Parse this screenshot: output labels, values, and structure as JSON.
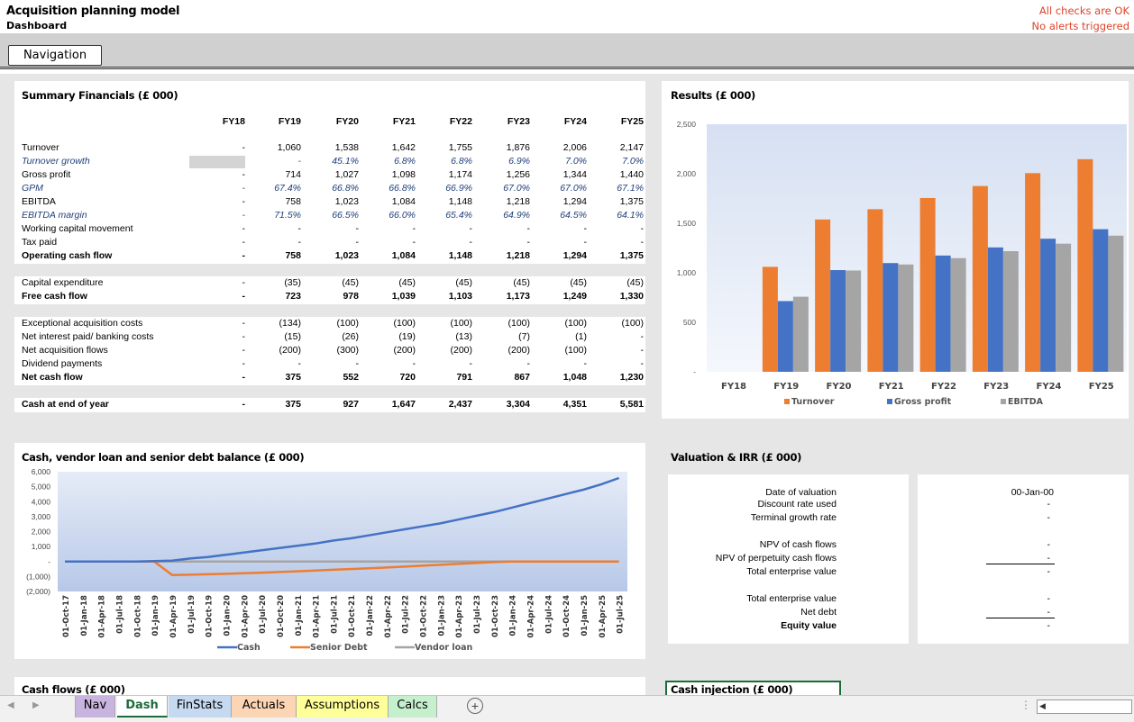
{
  "header": {
    "title": "Acquisition planning model",
    "subtitle": "Dashboard",
    "check_status": "All checks are OK",
    "alert_status": "No alerts triggered",
    "nav_button": "Navigation"
  },
  "summary": {
    "title": "Summary Financials (£ 000)",
    "years": [
      "FY18",
      "FY19",
      "FY20",
      "FY21",
      "FY22",
      "FY23",
      "FY24",
      "FY25"
    ],
    "rows": [
      {
        "label": "Turnover",
        "style": "normal",
        "values": [
          "-",
          "1,060",
          "1,538",
          "1,642",
          "1,755",
          "1,876",
          "2,006",
          "2,147"
        ]
      },
      {
        "label": "Turnover growth",
        "style": "italic",
        "values": [
          "-",
          "-",
          "45.1%",
          "6.8%",
          "6.8%",
          "6.9%",
          "7.0%",
          "7.0%"
        ]
      },
      {
        "label": "Gross profit",
        "style": "normal",
        "values": [
          "-",
          "714",
          "1,027",
          "1,098",
          "1,174",
          "1,256",
          "1,344",
          "1,440"
        ]
      },
      {
        "label": "GPM",
        "style": "italic",
        "values": [
          "-",
          "67.4%",
          "66.8%",
          "66.8%",
          "66.9%",
          "67.0%",
          "67.0%",
          "67.1%"
        ]
      },
      {
        "label": "EBITDA",
        "style": "normal",
        "values": [
          "-",
          "758",
          "1,023",
          "1,084",
          "1,148",
          "1,218",
          "1,294",
          "1,375"
        ]
      },
      {
        "label": "EBITDA margin",
        "style": "italic",
        "values": [
          "-",
          "71.5%",
          "66.5%",
          "66.0%",
          "65.4%",
          "64.9%",
          "64.5%",
          "64.1%"
        ]
      },
      {
        "label": "Working capital movement",
        "style": "normal",
        "values": [
          "-",
          "-",
          "-",
          "-",
          "-",
          "-",
          "-",
          "-"
        ]
      },
      {
        "label": "Tax paid",
        "style": "normal",
        "values": [
          "-",
          "-",
          "-",
          "-",
          "-",
          "-",
          "-",
          "-"
        ]
      },
      {
        "label": "Operating cash flow",
        "style": "bold",
        "values": [
          "-",
          "758",
          "1,023",
          "1,084",
          "1,148",
          "1,218",
          "1,294",
          "1,375"
        ]
      },
      {
        "label": "Capital expenditure",
        "style": "normal",
        "values": [
          "-",
          "(35)",
          "(45)",
          "(45)",
          "(45)",
          "(45)",
          "(45)",
          "(45)"
        ]
      },
      {
        "label": "Free cash flow",
        "style": "bold",
        "values": [
          "-",
          "723",
          "978",
          "1,039",
          "1,103",
          "1,173",
          "1,249",
          "1,330"
        ]
      },
      {
        "label": "Exceptional acquisition costs",
        "style": "normal",
        "values": [
          "-",
          "(134)",
          "(100)",
          "(100)",
          "(100)",
          "(100)",
          "(100)",
          "(100)"
        ]
      },
      {
        "label": "Net interest paid/ banking costs",
        "style": "normal",
        "values": [
          "-",
          "(15)",
          "(26)",
          "(19)",
          "(13)",
          "(7)",
          "(1)",
          "-"
        ]
      },
      {
        "label": "Net acquisition flows",
        "style": "normal",
        "values": [
          "-",
          "(200)",
          "(300)",
          "(200)",
          "(200)",
          "(200)",
          "(100)",
          "-"
        ]
      },
      {
        "label": "Dividend payments",
        "style": "normal",
        "values": [
          "-",
          "-",
          "-",
          "-",
          "-",
          "-",
          "-",
          "-"
        ]
      },
      {
        "label": "Net cash flow",
        "style": "bold",
        "values": [
          "-",
          "375",
          "552",
          "720",
          "791",
          "867",
          "1,048",
          "1,230"
        ]
      },
      {
        "label": "Cash at end of year",
        "style": "bold",
        "values": [
          "-",
          "375",
          "927",
          "1,647",
          "2,437",
          "3,304",
          "4,351",
          "5,581"
        ]
      }
    ]
  },
  "results_chart": {
    "type": "bar",
    "title": "Results (£ 000)",
    "categories": [
      "FY18",
      "FY19",
      "FY20",
      "FY21",
      "FY22",
      "FY23",
      "FY24",
      "FY25"
    ],
    "series": [
      {
        "name": "Turnover",
        "color": "#ed7d31",
        "values": [
          0,
          1060,
          1538,
          1642,
          1755,
          1876,
          2006,
          2147
        ]
      },
      {
        "name": "Gross profit",
        "color": "#4472c4",
        "values": [
          0,
          714,
          1027,
          1098,
          1174,
          1256,
          1344,
          1440
        ]
      },
      {
        "name": "EBITDA",
        "color": "#a5a5a5",
        "values": [
          0,
          758,
          1023,
          1084,
          1148,
          1218,
          1294,
          1375
        ]
      }
    ],
    "ylim": [
      0,
      2500
    ],
    "yticks": [
      "2,500",
      "2,000",
      "1,500",
      "1,000",
      "500",
      "-"
    ]
  },
  "balance_chart": {
    "type": "line",
    "title": "Cash, vendor loan and senior debt balance (£ 000)",
    "ylim": [
      -2000,
      6000
    ],
    "yticks": [
      "6,000",
      "5,000",
      "4,000",
      "3,000",
      "2,000",
      "1,000",
      "-",
      "(1,000)",
      "(2,000)"
    ],
    "xticks": [
      "01-Oct-17",
      "01-Jan-18",
      "01-Apr-18",
      "01-Jul-18",
      "01-Oct-18",
      "01-Jan-19",
      "01-Apr-19",
      "01-Jul-19",
      "01-Oct-19",
      "01-Jan-20",
      "01-Apr-20",
      "01-Jul-20",
      "01-Oct-20",
      "01-Jan-21",
      "01-Apr-21",
      "01-Jul-21",
      "01-Oct-21",
      "01-Jan-22",
      "01-Apr-22",
      "01-Jul-22",
      "01-Oct-22",
      "01-Jan-23",
      "01-Apr-23",
      "01-Jul-23",
      "01-Oct-23",
      "01-Jan-24",
      "01-Apr-24",
      "01-Jul-24",
      "01-Oct-24",
      "01-Jan-25",
      "01-Apr-25",
      "01-Jul-25"
    ],
    "series": [
      {
        "name": "Cash",
        "color": "#4472c4",
        "values": [
          0,
          0,
          0,
          0,
          0,
          30,
          60,
          200,
          300,
          450,
          600,
          750,
          900,
          1050,
          1200,
          1400,
          1550,
          1750,
          1950,
          2150,
          2350,
          2550,
          2800,
          3050,
          3300,
          3600,
          3900,
          4200,
          4500,
          4800,
          5150,
          5581
        ]
      },
      {
        "name": "Senior Debt",
        "color": "#ed7d31",
        "values": [
          0,
          0,
          0,
          0,
          0,
          0,
          -900,
          -880,
          -850,
          -820,
          -780,
          -740,
          -700,
          -650,
          -600,
          -550,
          -500,
          -450,
          -400,
          -340,
          -280,
          -220,
          -160,
          -100,
          -40,
          0,
          0,
          0,
          0,
          0,
          0,
          0
        ]
      },
      {
        "name": "Vendor loan",
        "color": "#a5a5a5",
        "values": [
          0,
          0,
          0,
          0,
          0,
          0,
          0,
          0,
          0,
          0,
          0,
          0,
          0,
          0,
          0,
          0,
          0,
          0,
          0,
          0,
          0,
          0,
          0,
          0,
          0,
          0,
          0,
          0,
          0,
          0,
          0,
          0
        ]
      }
    ]
  },
  "valuation": {
    "title": "Valuation & IRR (£ 000)",
    "rows": [
      {
        "label": "Date of valuation",
        "value": "00-Jan-00",
        "bold": false
      },
      {
        "label": "Discount rate used",
        "value": "-",
        "bold": false
      },
      {
        "label": "Terminal growth rate",
        "value": "-",
        "bold": false
      },
      {
        "label": "NPV of cash flows",
        "value": "-",
        "bold": false
      },
      {
        "label": "NPV of perpetuity cash flows",
        "value": "-",
        "bold": false
      },
      {
        "label": "Total enterprise value",
        "value": "-",
        "bold": false
      },
      {
        "label": "Total enterprise value",
        "value": "-",
        "bold": false
      },
      {
        "label": "Net debt",
        "value": "-",
        "bold": false
      },
      {
        "label": "Equity value",
        "value": "-",
        "bold": true
      }
    ]
  },
  "bottom_panels": {
    "cash_flows_title": "Cash flows (£ 000)",
    "cash_injection_title": "Cash injection (£ 000)"
  },
  "tabs": [
    {
      "label": "Nav",
      "color": "#c9b4e0"
    },
    {
      "label": "Dash",
      "color": "#ffffff"
    },
    {
      "label": "FinStats",
      "color": "#c5d9f1"
    },
    {
      "label": "Actuals",
      "color": "#fcd5b4"
    },
    {
      "label": "Assumptions",
      "color": "#ffff99"
    },
    {
      "label": "Calcs",
      "color": "#c6efce"
    }
  ],
  "add_sheet_symbol": "+"
}
